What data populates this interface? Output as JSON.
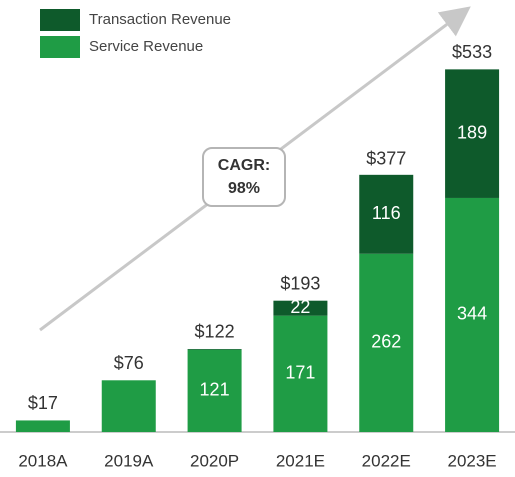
{
  "chart_data": {
    "type": "stacked_bar",
    "categories": [
      "2018A",
      "2019A",
      "2020P",
      "2021E",
      "2022E",
      "2023E"
    ],
    "series": [
      {
        "name": "Service Revenue",
        "color": "#1f9c45",
        "values": [
          17,
          76,
          121,
          171,
          262,
          344
        ],
        "value_labels": [
          null,
          null,
          "121",
          "171",
          "262",
          "344"
        ]
      },
      {
        "name": "Transaction Revenue",
        "color": "#0e5a2b",
        "values": [
          0,
          0,
          1,
          22,
          116,
          189
        ],
        "value_labels": [
          null,
          null,
          null,
          "22",
          "116",
          "189"
        ]
      }
    ],
    "totals": [
      17,
      76,
      122,
      193,
      377,
      533
    ],
    "total_labels": [
      "$17",
      "$76",
      "$122",
      "$193",
      "$377",
      "$533"
    ],
    "annotation": [
      "CAGR:",
      "98%"
    ],
    "ylim": [
      0,
      560
    ]
  }
}
